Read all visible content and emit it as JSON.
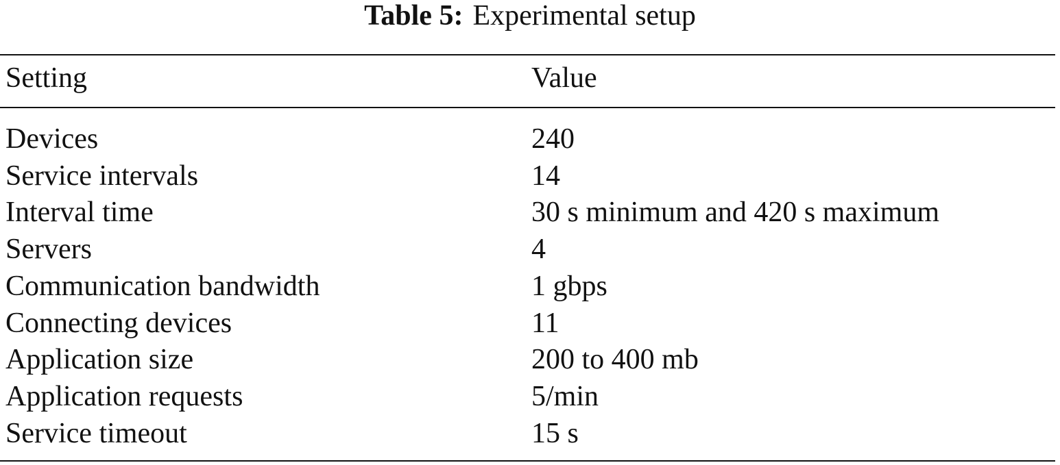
{
  "table": {
    "caption": {
      "label": "Table 5:",
      "text": "Experimental setup"
    },
    "header": [
      "Setting",
      "Value"
    ],
    "rows": [
      [
        "Devices",
        "240"
      ],
      [
        "Service intervals",
        "14"
      ],
      [
        "Interval time",
        "30 s minimum and 420 s maximum"
      ],
      [
        "Servers",
        "4"
      ],
      [
        "Communication bandwidth",
        "1 gbps"
      ],
      [
        "Connecting devices",
        "11"
      ],
      [
        "Application size",
        "200 to 400 mb"
      ],
      [
        "Application requests",
        "5/min"
      ],
      [
        "Service timeout",
        "15 s"
      ]
    ]
  }
}
